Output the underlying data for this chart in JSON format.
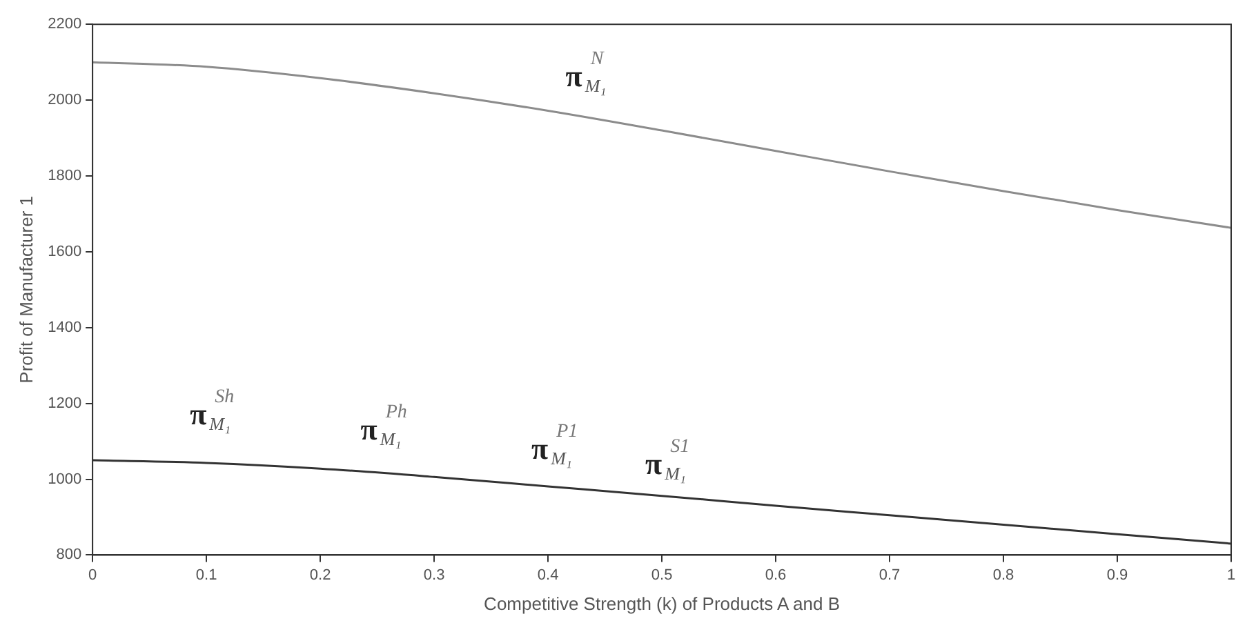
{
  "chart_data": {
    "type": "line",
    "xlabel": "Competitive Strength (k) of Products A and B",
    "ylabel": "Profit of Manufacturer 1",
    "x": [
      0,
      0.1,
      0.2,
      0.3,
      0.4,
      0.5,
      0.6,
      0.7,
      0.8,
      0.9,
      1
    ],
    "series": [
      {
        "name": "π$^{N}$$_{M₁}$",
        "color": "#8c8c8c",
        "values": [
          2100,
          2088,
          2058,
          2018,
          1972,
          1920,
          1866,
          1812,
          1760,
          1710,
          1663
        ]
      },
      {
        "color": "#333333",
        "values": [
          1050,
          1043,
          1028,
          1006,
          981,
          956,
          930,
          905,
          880,
          855,
          830
        ]
      }
    ],
    "annotations": [
      {
        "text": "π$^{Sh}$$_{M₁}$",
        "x": 0.1,
        "y": 1043
      },
      {
        "text": "π$^{Ph}$$_{M₁}$",
        "x": 0.25,
        "y": 1018
      },
      {
        "text": "π$^{P1}$$_{M₁}$",
        "x": 0.4,
        "y": 981
      },
      {
        "text": "π$^{S1}$$_{M₁}$",
        "x": 0.5,
        "y": 956
      }
    ],
    "xlim": [
      0,
      1
    ],
    "xticks": [
      0,
      0.1,
      0.2,
      0.3,
      0.4,
      0.5,
      0.6,
      0.7,
      0.8,
      0.9,
      1
    ],
    "ylim": [
      800,
      2200
    ],
    "yticks": [
      800,
      1000,
      1200,
      1400,
      1600,
      1800,
      2000,
      2200
    ],
    "grid": false,
    "legend": false,
    "marker": "none",
    "line_style": "solid"
  }
}
